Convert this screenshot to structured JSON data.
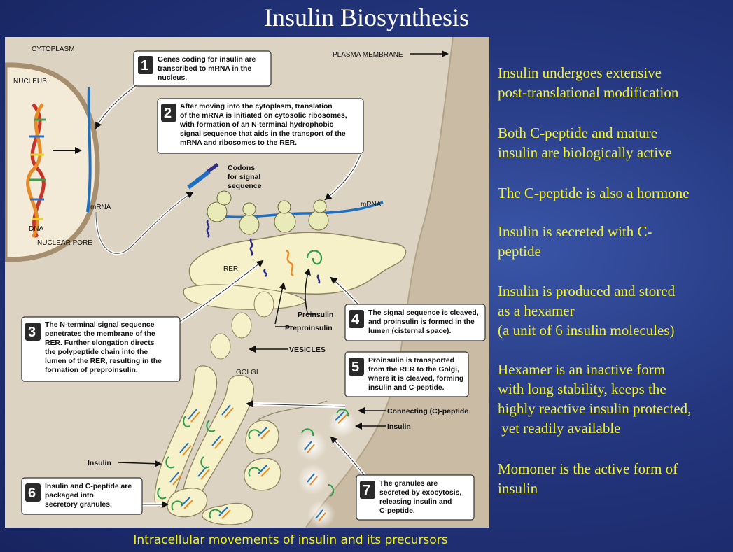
{
  "title": "Insulin Biosynthesis",
  "caption": "Intracellular movements of insulin and its precursors",
  "notes": [
    {
      "lines": [
        "Insulin undergoes extensive",
        "post-translational modification"
      ]
    },
    {
      "lines": [
        "Both C-peptide and mature",
        "insulin are biologically active"
      ]
    },
    {
      "lines": [
        "The C-peptide is also a hormone"
      ]
    },
    {
      "lines": [
        "Insulin is secreted with C-",
        "peptide"
      ]
    },
    {
      "lines": [
        "Insulin is produced and stored",
        "as a hexamer",
        "(a unit of 6 insulin molecules)"
      ]
    },
    {
      "lines": [
        "Hexamer is an inactive form",
        "with long stability, keeps the",
        "highly reactive insulin protected,",
        " yet readily available"
      ]
    },
    {
      "lines": [
        "Momoner is the active form of",
        "insulin"
      ]
    }
  ],
  "diagram": {
    "labels": {
      "cytoplasm": "CYTOPLASM",
      "nucleus": "NUCLEUS",
      "plasma_membrane": "PLASMA MEMBRANE",
      "dna": "DNA",
      "nuclear_pore": "NUCLEAR PORE",
      "mrna_left": "mRNA",
      "mrna_right": "mRNA",
      "codons": [
        "Codons",
        "for signal",
        "sequence"
      ],
      "rer": "RER",
      "proinsulin": "Proinsulin",
      "preproinsulin": "Preproinsulin",
      "vesicles": "VESICLES",
      "golgi": "GOLGI",
      "connecting_peptide": "Connecting (C)-peptide",
      "insulin_right": "Insulin",
      "insulin_left": "Insulin"
    },
    "steps": [
      {
        "num": "1",
        "lines": [
          "Genes coding for insulin are",
          "transcribed to mRNA in the",
          "nucleus."
        ]
      },
      {
        "num": "2",
        "lines": [
          "After moving into the cytoplasm, translation",
          "of the mRNA is initiated on cytosolic ribosomes,",
          "with formation of an N-terminal hydrophobic",
          "signal sequence that aids in the transport of the",
          "mRNA and ribosomes to the RER."
        ]
      },
      {
        "num": "3",
        "lines": [
          "The N-terminal signal sequence",
          "penetrates the membrane of the",
          "RER. Further elongation directs",
          "the polypeptide chain into the",
          "lumen of the RER, resulting in the",
          "formation of preproinsulin."
        ]
      },
      {
        "num": "4",
        "lines": [
          "The signal sequence is cleaved,",
          "and proinsulin is formed in the",
          "lumen (cisternal space)."
        ]
      },
      {
        "num": "5",
        "lines": [
          "Proinsulin is transported",
          "from the RER to the Golgi,",
          "where it is cleaved, forming",
          "insulin and C-peptide."
        ]
      },
      {
        "num": "6",
        "lines": [
          "Insulin and C-peptide are",
          "packaged into",
          "secretory granules."
        ]
      },
      {
        "num": "7",
        "lines": [
          "The granules are",
          "secreted by exocytosis,",
          "releasing insulin and",
          "C-peptide."
        ]
      }
    ]
  },
  "colors": {
    "background": "#24367e",
    "title": "#ffffff",
    "notes": "#f4f22a",
    "caption": "#f2f21a",
    "cytoplasm": "#ddd3c2",
    "extracellular": "#c9bba4",
    "organelle": "#f6f1c8",
    "mrna": "#1e6fbf",
    "c_peptide": "#2e9e4a",
    "signal_sequence": "#2b2b8a"
  }
}
